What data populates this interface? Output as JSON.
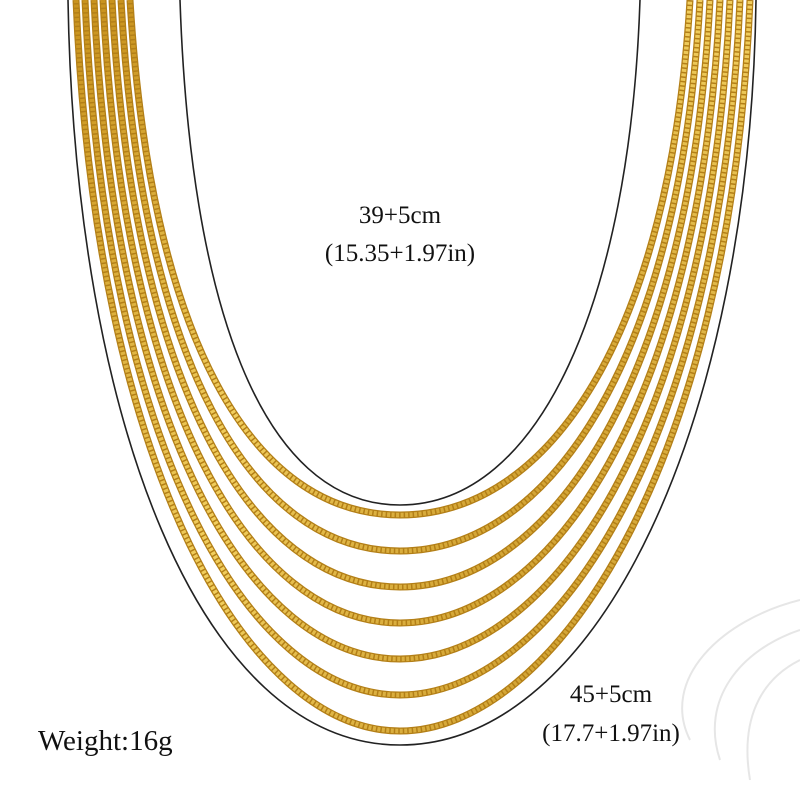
{
  "inner_length": {
    "cm": "39+5cm",
    "inches": "(15.35+1.97in)"
  },
  "outer_length": {
    "cm": "45+5cm",
    "inches": "(17.7+1.97in)"
  },
  "weight": "Weight:16g"
}
